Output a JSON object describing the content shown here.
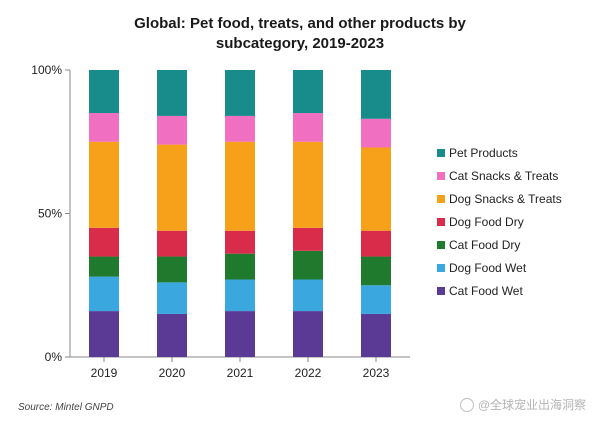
{
  "title": {
    "line1": "Global: Pet food, treats, and other products by",
    "line2": "subcategory, 2019-2023"
  },
  "source": "Source: Mintel GNPD",
  "watermark": "@全球宠业出海洞察",
  "chart_data": {
    "type": "bar",
    "stacked": true,
    "normalized_percent": true,
    "categories": [
      "2019",
      "2020",
      "2021",
      "2022",
      "2023"
    ],
    "ylim": [
      0,
      100
    ],
    "yticks": [
      0,
      50,
      100
    ],
    "ytick_labels": [
      "0%",
      "50%",
      "100%"
    ],
    "legend_position": "right",
    "series": [
      {
        "name": "Cat Food Wet",
        "color": "#5b3a96",
        "values": [
          16,
          15,
          16,
          16,
          15
        ]
      },
      {
        "name": "Dog Food Wet",
        "color": "#3ba7df",
        "values": [
          12,
          11,
          11,
          11,
          10
        ]
      },
      {
        "name": "Cat Food Dry",
        "color": "#1f7a2e",
        "values": [
          7,
          9,
          9,
          10,
          10
        ]
      },
      {
        "name": "Dog Food Dry",
        "color": "#d92b4a",
        "values": [
          10,
          9,
          8,
          8,
          9
        ]
      },
      {
        "name": "Dog Snacks & Treats",
        "color": "#f7a11a",
        "values": [
          30,
          30,
          31,
          30,
          29
        ]
      },
      {
        "name": "Cat Snacks & Treats",
        "color": "#f06fc0",
        "values": [
          10,
          10,
          9,
          10,
          10
        ]
      },
      {
        "name": "Pet Products",
        "color": "#178c8a",
        "values": [
          15,
          16,
          16,
          15,
          17
        ]
      }
    ]
  }
}
